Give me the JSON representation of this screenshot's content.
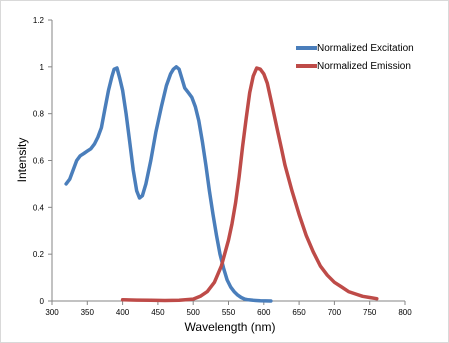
{
  "chart_data": {
    "type": "line",
    "title": "",
    "xlabel": "Wavelength (nm)",
    "ylabel": "Intensity",
    "xlim": [
      300,
      800
    ],
    "ylim": [
      0,
      1.2
    ],
    "xticks": [
      300,
      350,
      400,
      450,
      500,
      550,
      600,
      650,
      700,
      750,
      800
    ],
    "yticks": [
      0,
      0.2,
      0.4,
      0.6,
      0.8,
      1,
      1.2
    ],
    "ytick_labels": [
      "0",
      "0.2",
      "0.4",
      "0.6",
      "0.8",
      "1",
      "1.2"
    ],
    "grid": false,
    "legend_position": "top-right",
    "series": [
      {
        "name": "Normalized Excitation",
        "color": "#4a7ebb",
        "x": [
          320,
          325,
          330,
          335,
          340,
          345,
          350,
          355,
          360,
          365,
          370,
          375,
          380,
          385,
          388,
          392,
          396,
          400,
          405,
          410,
          415,
          420,
          424,
          428,
          433,
          440,
          447,
          455,
          462,
          468,
          472,
          476,
          480,
          484,
          488,
          493,
          498,
          503,
          508,
          513,
          518,
          523,
          528,
          533,
          538,
          543,
          548,
          553,
          558,
          563,
          568,
          573,
          578,
          585,
          595,
          610
        ],
        "y": [
          0.5,
          0.52,
          0.56,
          0.6,
          0.62,
          0.63,
          0.64,
          0.65,
          0.67,
          0.7,
          0.74,
          0.82,
          0.9,
          0.96,
          0.99,
          0.995,
          0.95,
          0.9,
          0.8,
          0.68,
          0.56,
          0.47,
          0.44,
          0.45,
          0.5,
          0.6,
          0.72,
          0.83,
          0.92,
          0.97,
          0.99,
          1.0,
          0.99,
          0.95,
          0.91,
          0.89,
          0.87,
          0.83,
          0.77,
          0.68,
          0.58,
          0.47,
          0.37,
          0.28,
          0.2,
          0.14,
          0.09,
          0.06,
          0.04,
          0.025,
          0.015,
          0.008,
          0.005,
          0.003,
          0.001,
          0.0
        ]
      },
      {
        "name": "Normalized Emission",
        "color": "#be4b48",
        "x": [
          400,
          420,
          440,
          460,
          480,
          500,
          510,
          520,
          530,
          540,
          550,
          555,
          560,
          565,
          570,
          575,
          580,
          585,
          590,
          595,
          600,
          605,
          610,
          615,
          620,
          625,
          630,
          640,
          650,
          660,
          670,
          680,
          690,
          700,
          710,
          720,
          730,
          740,
          750,
          760
        ],
        "y": [
          0.005,
          0.004,
          0.003,
          0.002,
          0.003,
          0.008,
          0.02,
          0.04,
          0.08,
          0.15,
          0.26,
          0.33,
          0.42,
          0.53,
          0.66,
          0.78,
          0.89,
          0.96,
          0.995,
          0.99,
          0.97,
          0.93,
          0.86,
          0.79,
          0.72,
          0.65,
          0.58,
          0.47,
          0.37,
          0.28,
          0.21,
          0.15,
          0.11,
          0.08,
          0.06,
          0.04,
          0.03,
          0.02,
          0.015,
          0.01
        ]
      }
    ]
  }
}
